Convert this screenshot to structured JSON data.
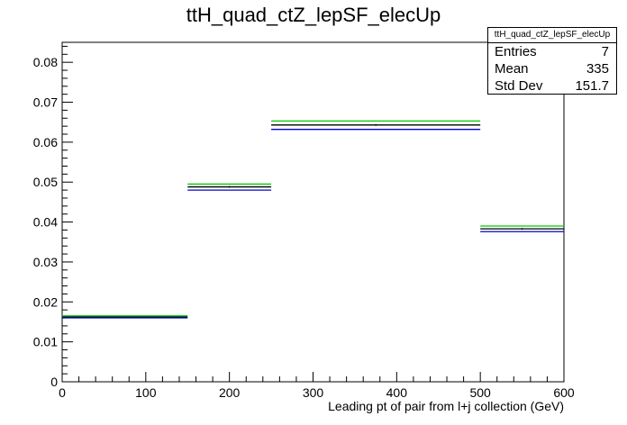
{
  "title": "ttH_quad_ctZ_lepSF_elecUp",
  "stats_box": {
    "name": "ttH_quad_ctZ_lepSF_elecUp",
    "entries_label": "Entries",
    "entries_value": "7",
    "mean_label": "Mean",
    "mean_value": "335",
    "stddev_label": "Std Dev",
    "stddev_value": "151.7"
  },
  "chart_data": {
    "type": "bar",
    "title": "ttH_quad_ctZ_lepSF_elecUp",
    "xlabel": "Leading pt of pair from l+j collection (GeV)",
    "ylabel": "",
    "xlim": [
      0,
      600
    ],
    "ylim": [
      0,
      0.085
    ],
    "x_ticks": [
      0,
      100,
      200,
      300,
      400,
      500,
      600
    ],
    "y_ticks": [
      0,
      0.01,
      0.02,
      0.03,
      0.04,
      0.05,
      0.06,
      0.07,
      0.08
    ],
    "bin_edges": [
      0,
      150,
      250,
      500,
      600
    ],
    "series": [
      {
        "color": "#000000",
        "values": [
          0.0162,
          0.0488,
          0.0643,
          0.0383
        ]
      },
      {
        "color": "#00cc00",
        "values": [
          0.0165,
          0.0495,
          0.0653,
          0.039
        ]
      },
      {
        "color": "#0000cc",
        "values": [
          0.016,
          0.048,
          0.0632,
          0.0376
        ]
      }
    ],
    "grid": false,
    "legend": "top-right"
  }
}
